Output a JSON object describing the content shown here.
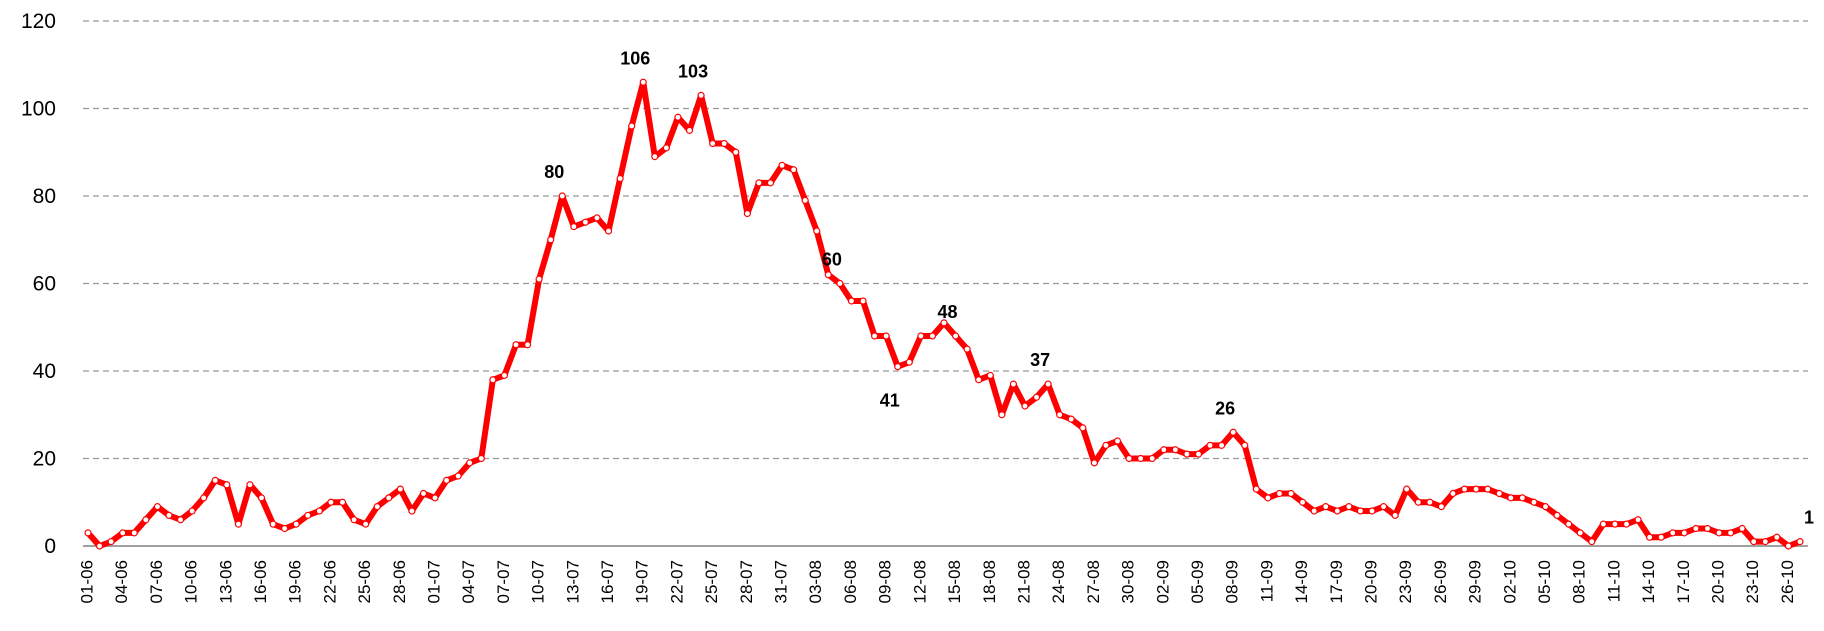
{
  "chart_data": {
    "type": "line",
    "categories": [
      "01-06",
      null,
      null,
      "04-06",
      null,
      null,
      "07-06",
      null,
      null,
      "10-06",
      null,
      null,
      "13-06",
      null,
      null,
      "16-06",
      null,
      null,
      "19-06",
      null,
      null,
      "22-06",
      null,
      null,
      "25-06",
      null,
      null,
      "28-06",
      null,
      null,
      "01-07",
      null,
      null,
      "04-07",
      null,
      null,
      "07-07",
      null,
      null,
      "10-07",
      null,
      null,
      "13-07",
      null,
      null,
      "16-07",
      null,
      null,
      "19-07",
      null,
      null,
      "22-07",
      null,
      null,
      "25-07",
      null,
      null,
      "28-07",
      null,
      null,
      "31-07",
      null,
      null,
      "03-08",
      null,
      null,
      "06-08",
      null,
      null,
      "09-08",
      null,
      null,
      "12-08",
      null,
      null,
      "15-08",
      null,
      null,
      "18-08",
      null,
      null,
      "21-08",
      null,
      null,
      "24-08",
      null,
      null,
      "27-08",
      null,
      null,
      "30-08",
      null,
      null,
      "02-09",
      null,
      null,
      "05-09",
      null,
      null,
      "08-09",
      null,
      null,
      "11-09",
      null,
      null,
      "14-09",
      null,
      null,
      "17-09",
      null,
      null,
      "20-09",
      null,
      null,
      "23-09",
      null,
      null,
      "26-09",
      null,
      null,
      "29-09",
      null,
      null,
      "02-10",
      null,
      null,
      "05-10",
      null,
      null,
      "08-10",
      null,
      null,
      "11-10",
      null,
      null,
      "14-10",
      null,
      null,
      "17-10",
      null,
      null,
      "20-10",
      null,
      null,
      "23-10",
      null,
      null,
      "26-10",
      null
    ],
    "series": [
      {
        "color": "#ff0000",
        "values": [
          3,
          0,
          1,
          3,
          3,
          6,
          9,
          7,
          6,
          8,
          11,
          15,
          14,
          5,
          14,
          11,
          5,
          4,
          5,
          7,
          8,
          10,
          10,
          6,
          5,
          9,
          11,
          13,
          8,
          12,
          11,
          15,
          16,
          19,
          20,
          38,
          39,
          46,
          46,
          61,
          70,
          80,
          73,
          74,
          75,
          72,
          84,
          96,
          106,
          89,
          91,
          98,
          95,
          103,
          92,
          92,
          90,
          76,
          83,
          83,
          87,
          86,
          79,
          72,
          62,
          60,
          56,
          56,
          48,
          48,
          41,
          42,
          48,
          48,
          51,
          48,
          45,
          38,
          39,
          30,
          37,
          32,
          34,
          37,
          30,
          29,
          27,
          19,
          23,
          24,
          20,
          20,
          20,
          22,
          22,
          21,
          21,
          23,
          23,
          26,
          23,
          13,
          11,
          12,
          12,
          10,
          8,
          9,
          8,
          9,
          8,
          8,
          9,
          7,
          13,
          10,
          10,
          9,
          12,
          13,
          13,
          13,
          12,
          11,
          11,
          10,
          9,
          7,
          5,
          3,
          1,
          5,
          5,
          5,
          6,
          2,
          2,
          3,
          3,
          4,
          4,
          3,
          3,
          4,
          1,
          1,
          2,
          0,
          1
        ],
        "value_labels": [
          null,
          null,
          null,
          null,
          null,
          null,
          null,
          null,
          null,
          null,
          null,
          null,
          null,
          null,
          null,
          null,
          null,
          null,
          null,
          null,
          null,
          null,
          null,
          null,
          null,
          null,
          null,
          null,
          null,
          null,
          null,
          null,
          null,
          null,
          null,
          null,
          null,
          null,
          null,
          null,
          null,
          "80",
          null,
          null,
          null,
          null,
          null,
          null,
          "106",
          null,
          null,
          null,
          null,
          "103",
          null,
          null,
          null,
          null,
          null,
          null,
          null,
          null,
          null,
          null,
          null,
          "60",
          null,
          null,
          null,
          null,
          "41",
          null,
          null,
          null,
          null,
          "48",
          null,
          null,
          null,
          null,
          null,
          null,
          null,
          "37",
          null,
          null,
          null,
          null,
          null,
          null,
          null,
          null,
          null,
          null,
          null,
          null,
          null,
          null,
          null,
          "26",
          null,
          null,
          null,
          null,
          null,
          null,
          null,
          null,
          null,
          null,
          null,
          null,
          null,
          null,
          null,
          null,
          null,
          null,
          null,
          null,
          null,
          null,
          null,
          null,
          null,
          null,
          null,
          null,
          null,
          null,
          null,
          null,
          null,
          null,
          null,
          null,
          null,
          null,
          null,
          null,
          null,
          null,
          null,
          null,
          null,
          null,
          null,
          null,
          "1"
        ]
      }
    ],
    "ylim": [
      0,
      120
    ],
    "yticks": [
      0,
      20,
      40,
      60,
      80,
      100,
      120
    ],
    "grid": true
  }
}
